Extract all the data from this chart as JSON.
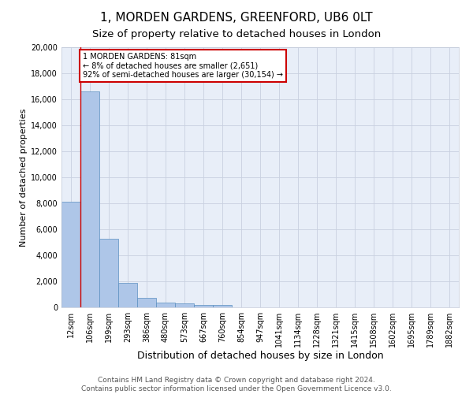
{
  "title1": "1, MORDEN GARDENS, GREENFORD, UB6 0LT",
  "title2": "Size of property relative to detached houses in London",
  "xlabel": "Distribution of detached houses by size in London",
  "ylabel": "Number of detached properties",
  "bar_labels": [
    "12sqm",
    "106sqm",
    "199sqm",
    "293sqm",
    "386sqm",
    "480sqm",
    "573sqm",
    "667sqm",
    "760sqm",
    "854sqm",
    "947sqm",
    "1041sqm",
    "1134sqm",
    "1228sqm",
    "1321sqm",
    "1415sqm",
    "1508sqm",
    "1602sqm",
    "1695sqm",
    "1789sqm",
    "1882sqm"
  ],
  "bar_values": [
    8100,
    16600,
    5300,
    1850,
    700,
    380,
    280,
    210,
    190,
    0,
    0,
    0,
    0,
    0,
    0,
    0,
    0,
    0,
    0,
    0,
    0
  ],
  "bar_color": "#aec6e8",
  "bar_edge_color": "#5a8fc0",
  "vline_color": "#cc0000",
  "annotation_box_color": "#ffffff",
  "annotation_border_color": "#cc0000",
  "property_label": "1 MORDEN GARDENS: 81sqm",
  "annotation_line1": "← 8% of detached houses are smaller (2,651)",
  "annotation_line2": "92% of semi-detached houses are larger (30,154) →",
  "ylim": [
    0,
    20000
  ],
  "yticks": [
    0,
    2000,
    4000,
    6000,
    8000,
    10000,
    12000,
    14000,
    16000,
    18000,
    20000
  ],
  "grid_color": "#c8d0e0",
  "bg_color": "#e8eef8",
  "footer1": "Contains HM Land Registry data © Crown copyright and database right 2024.",
  "footer2": "Contains public sector information licensed under the Open Government Licence v3.0.",
  "title1_fontsize": 11,
  "title2_fontsize": 9.5,
  "xlabel_fontsize": 9,
  "ylabel_fontsize": 8,
  "tick_fontsize": 7,
  "annot_fontsize": 7,
  "footer_fontsize": 6.5
}
